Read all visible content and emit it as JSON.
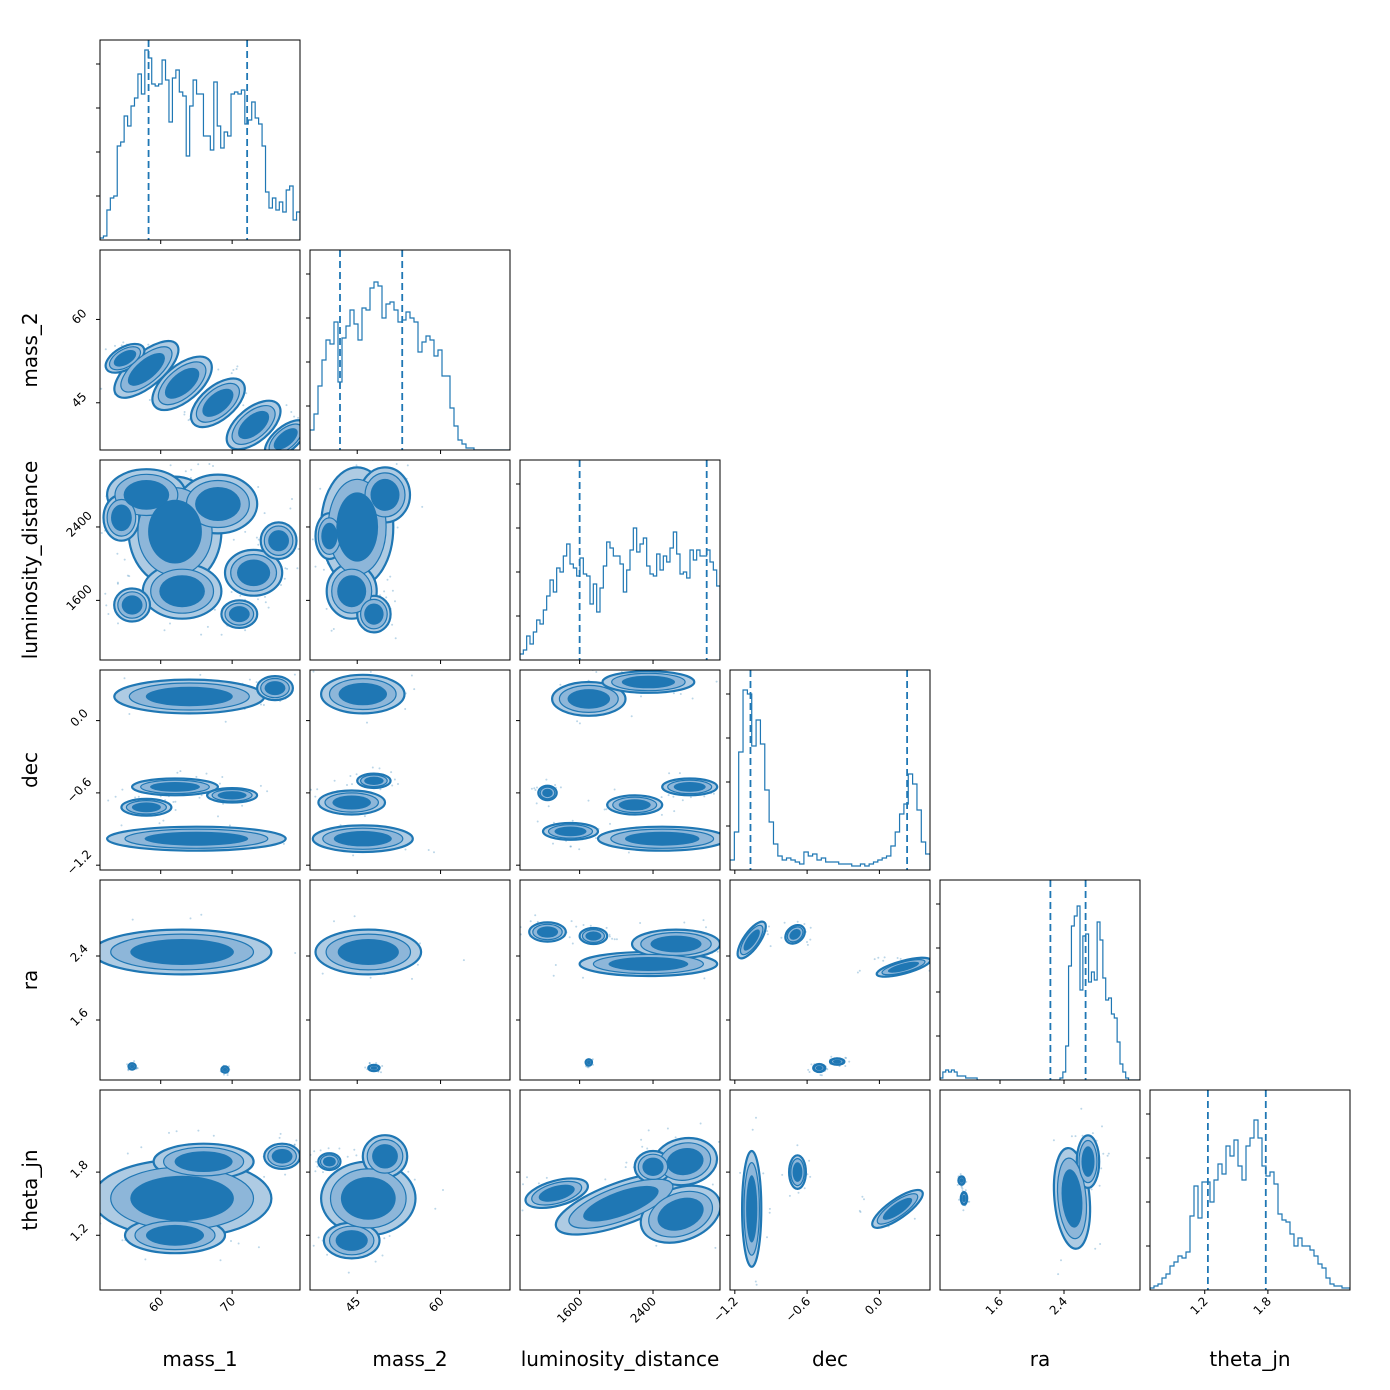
{
  "chart_data": {
    "type": "corner",
    "color": "#1f77b4",
    "params": [
      "mass_1",
      "mass_2",
      "luminosity_distance",
      "dec",
      "ra",
      "theta_jn"
    ],
    "axis_labels": [
      "mass_1",
      "mass_2",
      "luminosity_distance",
      "dec",
      "ra",
      "theta_jn"
    ],
    "ranges": [
      [
        51.5,
        79.5
      ],
      [
        36.5,
        72.5
      ],
      [
        950,
        3130
      ],
      [
        -1.24,
        0.42
      ],
      [
        0.85,
        3.35
      ],
      [
        0.68,
        2.58
      ]
    ],
    "ticks": [
      {
        "values": [
          60,
          70
        ],
        "labels": [
          "60",
          "70"
        ]
      },
      {
        "values": [
          45,
          60
        ],
        "labels": [
          "45",
          "60"
        ]
      },
      {
        "values": [
          1600,
          2400
        ],
        "labels": [
          "1600",
          "2400"
        ]
      },
      {
        "values": [
          -1.2,
          -0.6,
          0.0
        ],
        "labels": [
          "−1.2",
          "−0.6",
          "0.0"
        ]
      },
      {
        "values": [
          1.6,
          2.4
        ],
        "labels": [
          "1.6",
          "2.4"
        ]
      },
      {
        "values": [
          1.2,
          1.8
        ],
        "labels": [
          "1.2",
          "1.8"
        ]
      }
    ],
    "quantiles": [
      [
        58.3,
        72.1
      ],
      [
        41.9,
        53.1
      ],
      [
        1600,
        2985
      ],
      [
        -1.07,
        0.23
      ],
      [
        2.23,
        2.67
      ],
      [
        1.23,
        1.78
      ]
    ],
    "histograms": [
      [
        0.01,
        0.02,
        0.15,
        0.21,
        0.22,
        0.47,
        0.49,
        0.62,
        0.57,
        0.67,
        0.71,
        0.83,
        0.73,
        0.95,
        0.91,
        0.78,
        0.77,
        0.78,
        0.9,
        0.8,
        0.59,
        0.81,
        0.85,
        0.74,
        0.72,
        0.42,
        0.67,
        0.8,
        0.73,
        0.73,
        0.52,
        0.52,
        0.45,
        0.79,
        0.57,
        0.46,
        0.54,
        0.52,
        0.73,
        0.74,
        0.73,
        0.75,
        0.58,
        0.6,
        0.69,
        0.61,
        0.58,
        0.47,
        0.24,
        0.16,
        0.21,
        0.15,
        0.19,
        0.14,
        0.25,
        0.27,
        0.1,
        0.14
      ],
      [
        0.1,
        0.18,
        0.32,
        0.45,
        0.55,
        0.53,
        0.64,
        0.34,
        0.56,
        0.62,
        0.7,
        0.63,
        0.55,
        0.71,
        0.7,
        0.81,
        0.84,
        0.82,
        0.66,
        0.73,
        0.74,
        0.7,
        0.64,
        0.65,
        0.69,
        0.66,
        0.64,
        0.49,
        0.54,
        0.57,
        0.55,
        0.47,
        0.5,
        0.37,
        0.37,
        0.21,
        0.12,
        0.05,
        0.03,
        0.01,
        0.01,
        0.0,
        0.0,
        0.0,
        0.0,
        0.0,
        0.0,
        0.0,
        0.0,
        0.0
      ],
      [
        0.03,
        0.05,
        0.12,
        0.08,
        0.14,
        0.2,
        0.18,
        0.25,
        0.32,
        0.4,
        0.34,
        0.46,
        0.44,
        0.52,
        0.58,
        0.48,
        0.46,
        0.42,
        0.51,
        0.43,
        0.42,
        0.28,
        0.38,
        0.24,
        0.36,
        0.47,
        0.59,
        0.56,
        0.52,
        0.52,
        0.48,
        0.34,
        0.45,
        0.55,
        0.66,
        0.54,
        0.58,
        0.61,
        0.47,
        0.43,
        0.42,
        0.53,
        0.45,
        0.52,
        0.49,
        0.56,
        0.64,
        0.53,
        0.43,
        0.44,
        0.41,
        0.55,
        0.5,
        0.55,
        0.52,
        0.52,
        0.55,
        0.49,
        0.45,
        0.37
      ],
      [
        0.05,
        0.19,
        0.59,
        0.9,
        0.88,
        0.62,
        0.75,
        0.63,
        0.4,
        0.24,
        0.13,
        0.07,
        0.05,
        0.06,
        0.05,
        0.04,
        0.03,
        0.09,
        0.07,
        0.08,
        0.05,
        0.06,
        0.04,
        0.04,
        0.04,
        0.03,
        0.03,
        0.03,
        0.02,
        0.02,
        0.03,
        0.02,
        0.03,
        0.04,
        0.05,
        0.06,
        0.07,
        0.12,
        0.19,
        0.28,
        0.33,
        0.48,
        0.43,
        0.3,
        0.14,
        0.08
      ],
      [
        0.01,
        0.04,
        0.05,
        0.04,
        0.05,
        0.04,
        0.02,
        0.02,
        0.02,
        0.01,
        0.01,
        0.01,
        0.01,
        0.0,
        0.0,
        0.0,
        0.0,
        0.0,
        0.0,
        0.0,
        0.0,
        0.0,
        0.0,
        0.0,
        0.0,
        0.0,
        0.0,
        0.0,
        0.0,
        0.0,
        0.0,
        0.0,
        0.0,
        0.0,
        0.0,
        0.0,
        0.0,
        0.0,
        0.0,
        0.0,
        0.0,
        0.0,
        0.01,
        0.04,
        0.17,
        0.57,
        0.77,
        0.82,
        0.87,
        0.45,
        0.72,
        0.73,
        0.49,
        0.54,
        0.5,
        0.79,
        0.7,
        0.51,
        0.4,
        0.41,
        0.33,
        0.31,
        0.19,
        0.08,
        0.04,
        0.01,
        0.0,
        0.0,
        0.0,
        0.0
      ],
      [
        0.01,
        0.02,
        0.03,
        0.06,
        0.08,
        0.12,
        0.14,
        0.17,
        0.16,
        0.19,
        0.37,
        0.52,
        0.36,
        0.54,
        0.54,
        0.44,
        0.55,
        0.63,
        0.58,
        0.72,
        0.67,
        0.75,
        0.62,
        0.55,
        0.72,
        0.76,
        0.85,
        0.76,
        0.62,
        0.57,
        0.59,
        0.53,
        0.38,
        0.35,
        0.34,
        0.28,
        0.22,
        0.26,
        0.22,
        0.22,
        0.2,
        0.17,
        0.13,
        0.11,
        0.06,
        0.03,
        0.02,
        0.02,
        0.01,
        0.01
      ]
    ],
    "blobs": [
      {
        "pair": [
          1,
          0
        ],
        "items": [
          {
            "x": 58,
            "y": 51,
            "rx": 5.5,
            "ry": 3.0,
            "angle": -40
          },
          {
            "x": 63,
            "y": 48.5,
            "rx": 5.0,
            "ry": 3.2,
            "angle": -40
          },
          {
            "x": 68,
            "y": 45,
            "rx": 4.5,
            "ry": 3.0,
            "angle": -40
          },
          {
            "x": 73,
            "y": 41,
            "rx": 4.5,
            "ry": 3.0,
            "angle": -40
          },
          {
            "x": 77.5,
            "y": 38.5,
            "rx": 3.5,
            "ry": 2.2,
            "angle": -40
          },
          {
            "x": 55,
            "y": 53,
            "rx": 3.0,
            "ry": 2.0,
            "angle": -30
          }
        ]
      },
      {
        "pair": [
          2,
          0
        ],
        "items": [
          {
            "x": 62,
            "y": 2350,
            "rx": 6.5,
            "ry": 600,
            "angle": 0
          },
          {
            "x": 58,
            "y": 2750,
            "rx": 5.5,
            "ry": 280,
            "angle": 0
          },
          {
            "x": 68,
            "y": 2650,
            "rx": 5.5,
            "ry": 320,
            "angle": 0
          },
          {
            "x": 63,
            "y": 1700,
            "rx": 5.5,
            "ry": 300,
            "angle": 0
          },
          {
            "x": 73,
            "y": 1900,
            "rx": 4.0,
            "ry": 250,
            "angle": 0
          },
          {
            "x": 76.5,
            "y": 2250,
            "rx": 2.5,
            "ry": 200,
            "angle": 0
          },
          {
            "x": 54.5,
            "y": 2500,
            "rx": 2.5,
            "ry": 250,
            "angle": 0
          },
          {
            "x": 56,
            "y": 1550,
            "rx": 2.5,
            "ry": 180,
            "angle": 0
          },
          {
            "x": 71,
            "y": 1450,
            "rx": 2.5,
            "ry": 150,
            "angle": 0
          }
        ]
      },
      {
        "pair": [
          2,
          1
        ],
        "items": [
          {
            "x": 45,
            "y": 2400,
            "rx": 6.5,
            "ry": 650,
            "angle": 0
          },
          {
            "x": 44,
            "y": 1700,
            "rx": 4.5,
            "ry": 300,
            "angle": 0
          },
          {
            "x": 50,
            "y": 2750,
            "rx": 4.5,
            "ry": 300,
            "angle": 0
          },
          {
            "x": 48,
            "y": 1450,
            "rx": 3.0,
            "ry": 200,
            "angle": 0
          },
          {
            "x": 40,
            "y": 2300,
            "rx": 2.5,
            "ry": 250,
            "angle": 0
          }
        ]
      },
      {
        "pair": [
          3,
          0
        ],
        "items": [
          {
            "x": 65,
            "y": -0.98,
            "rx": 12.5,
            "ry": 0.1,
            "angle": 0
          },
          {
            "x": 64,
            "y": 0.2,
            "rx": 10.5,
            "ry": 0.14,
            "angle": 0
          },
          {
            "x": 62,
            "y": -0.55,
            "rx": 6.0,
            "ry": 0.07,
            "angle": 0
          },
          {
            "x": 58,
            "y": -0.72,
            "rx": 3.5,
            "ry": 0.07,
            "angle": 0
          },
          {
            "x": 70,
            "y": -0.62,
            "rx": 3.5,
            "ry": 0.06,
            "angle": 0
          },
          {
            "x": 76,
            "y": 0.27,
            "rx": 2.5,
            "ry": 0.1,
            "angle": 0
          }
        ]
      },
      {
        "pair": [
          3,
          1
        ],
        "items": [
          {
            "x": 46,
            "y": -0.98,
            "rx": 9.0,
            "ry": 0.11,
            "angle": 0
          },
          {
            "x": 46,
            "y": 0.22,
            "rx": 7.5,
            "ry": 0.16,
            "angle": 0
          },
          {
            "x": 44,
            "y": -0.68,
            "rx": 6.0,
            "ry": 0.1,
            "angle": 0
          },
          {
            "x": 48,
            "y": -0.5,
            "rx": 3.0,
            "ry": 0.06,
            "angle": 0
          }
        ]
      },
      {
        "pair": [
          3,
          2
        ],
        "items": [
          {
            "x": 2500,
            "y": -0.98,
            "rx": 700,
            "ry": 0.1,
            "angle": 0
          },
          {
            "x": 1500,
            "y": -0.92,
            "rx": 300,
            "ry": 0.07,
            "angle": 0
          },
          {
            "x": 1700,
            "y": 0.18,
            "rx": 400,
            "ry": 0.14,
            "angle": 0
          },
          {
            "x": 2350,
            "y": 0.32,
            "rx": 500,
            "ry": 0.09,
            "angle": 0
          },
          {
            "x": 2200,
            "y": -0.7,
            "rx": 300,
            "ry": 0.08,
            "angle": 0
          },
          {
            "x": 2800,
            "y": -0.55,
            "rx": 300,
            "ry": 0.07,
            "angle": 0
          },
          {
            "x": 1250,
            "y": -0.6,
            "rx": 100,
            "ry": 0.06,
            "angle": 0
          }
        ]
      },
      {
        "pair": [
          4,
          0
        ],
        "items": [
          {
            "x": 63,
            "y": 2.45,
            "rx": 12.5,
            "ry": 0.28,
            "angle": 0
          },
          {
            "x": 56,
            "y": 1.02,
            "rx": 0.5,
            "ry": 0.04,
            "angle": 0
          },
          {
            "x": 69,
            "y": 0.98,
            "rx": 0.5,
            "ry": 0.04,
            "angle": 0
          }
        ]
      },
      {
        "pair": [
          4,
          1
        ],
        "items": [
          {
            "x": 47,
            "y": 2.45,
            "rx": 9.5,
            "ry": 0.28,
            "angle": 0
          },
          {
            "x": 48,
            "y": 1.0,
            "rx": 1.0,
            "ry": 0.04,
            "angle": 0
          }
        ]
      },
      {
        "pair": [
          4,
          2
        ],
        "items": [
          {
            "x": 2350,
            "y": 2.3,
            "rx": 750,
            "ry": 0.15,
            "angle": 0
          },
          {
            "x": 2650,
            "y": 2.55,
            "rx": 480,
            "ry": 0.18,
            "angle": 0
          },
          {
            "x": 1250,
            "y": 2.7,
            "rx": 200,
            "ry": 0.12,
            "angle": 0
          },
          {
            "x": 1750,
            "y": 2.65,
            "rx": 150,
            "ry": 0.1,
            "angle": 0
          },
          {
            "x": 1700,
            "y": 1.07,
            "rx": 35,
            "ry": 0.04,
            "angle": 0
          }
        ]
      },
      {
        "pair": [
          4,
          3
        ],
        "items": [
          {
            "x": -1.06,
            "y": 2.6,
            "rx": 0.18,
            "ry": 0.1,
            "angle": -55
          },
          {
            "x": -0.7,
            "y": 2.67,
            "rx": 0.09,
            "ry": 0.1,
            "angle": -40
          },
          {
            "x": 0.2,
            "y": 2.26,
            "rx": 0.23,
            "ry": 0.08,
            "angle": -15
          },
          {
            "x": -0.35,
            "y": 1.08,
            "rx": 0.06,
            "ry": 0.04,
            "angle": 0
          },
          {
            "x": -0.5,
            "y": 1.0,
            "rx": 0.05,
            "ry": 0.05,
            "angle": 0
          }
        ]
      },
      {
        "pair": [
          5,
          0
        ],
        "items": [
          {
            "x": 63,
            "y": 1.55,
            "rx": 12.5,
            "ry": 0.37,
            "angle": 0
          },
          {
            "x": 66,
            "y": 1.9,
            "rx": 7.0,
            "ry": 0.17,
            "angle": 0
          },
          {
            "x": 62,
            "y": 1.2,
            "rx": 7.0,
            "ry": 0.17,
            "angle": 0
          },
          {
            "x": 77,
            "y": 1.95,
            "rx": 2.5,
            "ry": 0.12,
            "angle": 0
          }
        ]
      },
      {
        "pair": [
          5,
          1
        ],
        "items": [
          {
            "x": 47,
            "y": 1.55,
            "rx": 8.5,
            "ry": 0.35,
            "angle": 0
          },
          {
            "x": 50,
            "y": 1.95,
            "rx": 4.0,
            "ry": 0.2,
            "angle": 0
          },
          {
            "x": 44,
            "y": 1.15,
            "rx": 5.0,
            "ry": 0.17,
            "angle": 0
          },
          {
            "x": 40,
            "y": 1.9,
            "rx": 2.0,
            "ry": 0.08,
            "angle": 0
          }
        ]
      },
      {
        "pair": [
          5,
          2
        ],
        "items": [
          {
            "x": 2050,
            "y": 1.5,
            "rx": 750,
            "ry": 0.2,
            "angle": -20
          },
          {
            "x": 2700,
            "y": 1.4,
            "rx": 450,
            "ry": 0.25,
            "angle": -20
          },
          {
            "x": 2750,
            "y": 1.9,
            "rx": 350,
            "ry": 0.22,
            "angle": -10
          },
          {
            "x": 1350,
            "y": 1.6,
            "rx": 350,
            "ry": 0.12,
            "angle": -15
          },
          {
            "x": 2400,
            "y": 1.85,
            "rx": 200,
            "ry": 0.15,
            "angle": 0
          }
        ]
      },
      {
        "pair": [
          5,
          3
        ],
        "items": [
          {
            "x": -1.06,
            "y": 1.45,
            "rx": 0.08,
            "ry": 0.55,
            "angle": 0
          },
          {
            "x": -0.68,
            "y": 1.8,
            "rx": 0.07,
            "ry": 0.16,
            "angle": 0
          },
          {
            "x": 0.15,
            "y": 1.45,
            "rx": 0.25,
            "ry": 0.09,
            "angle": -35
          }
        ]
      },
      {
        "pair": [
          5,
          4
        ],
        "items": [
          {
            "x": 2.5,
            "y": 1.55,
            "rx": 0.22,
            "ry": 0.48,
            "angle": -5
          },
          {
            "x": 2.7,
            "y": 1.9,
            "rx": 0.14,
            "ry": 0.25,
            "angle": 0
          },
          {
            "x": 1.15,
            "y": 1.55,
            "rx": 0.04,
            "ry": 0.06,
            "angle": 0
          },
          {
            "x": 1.12,
            "y": 1.72,
            "rx": 0.04,
            "ry": 0.04,
            "angle": 0
          }
        ]
      }
    ]
  }
}
